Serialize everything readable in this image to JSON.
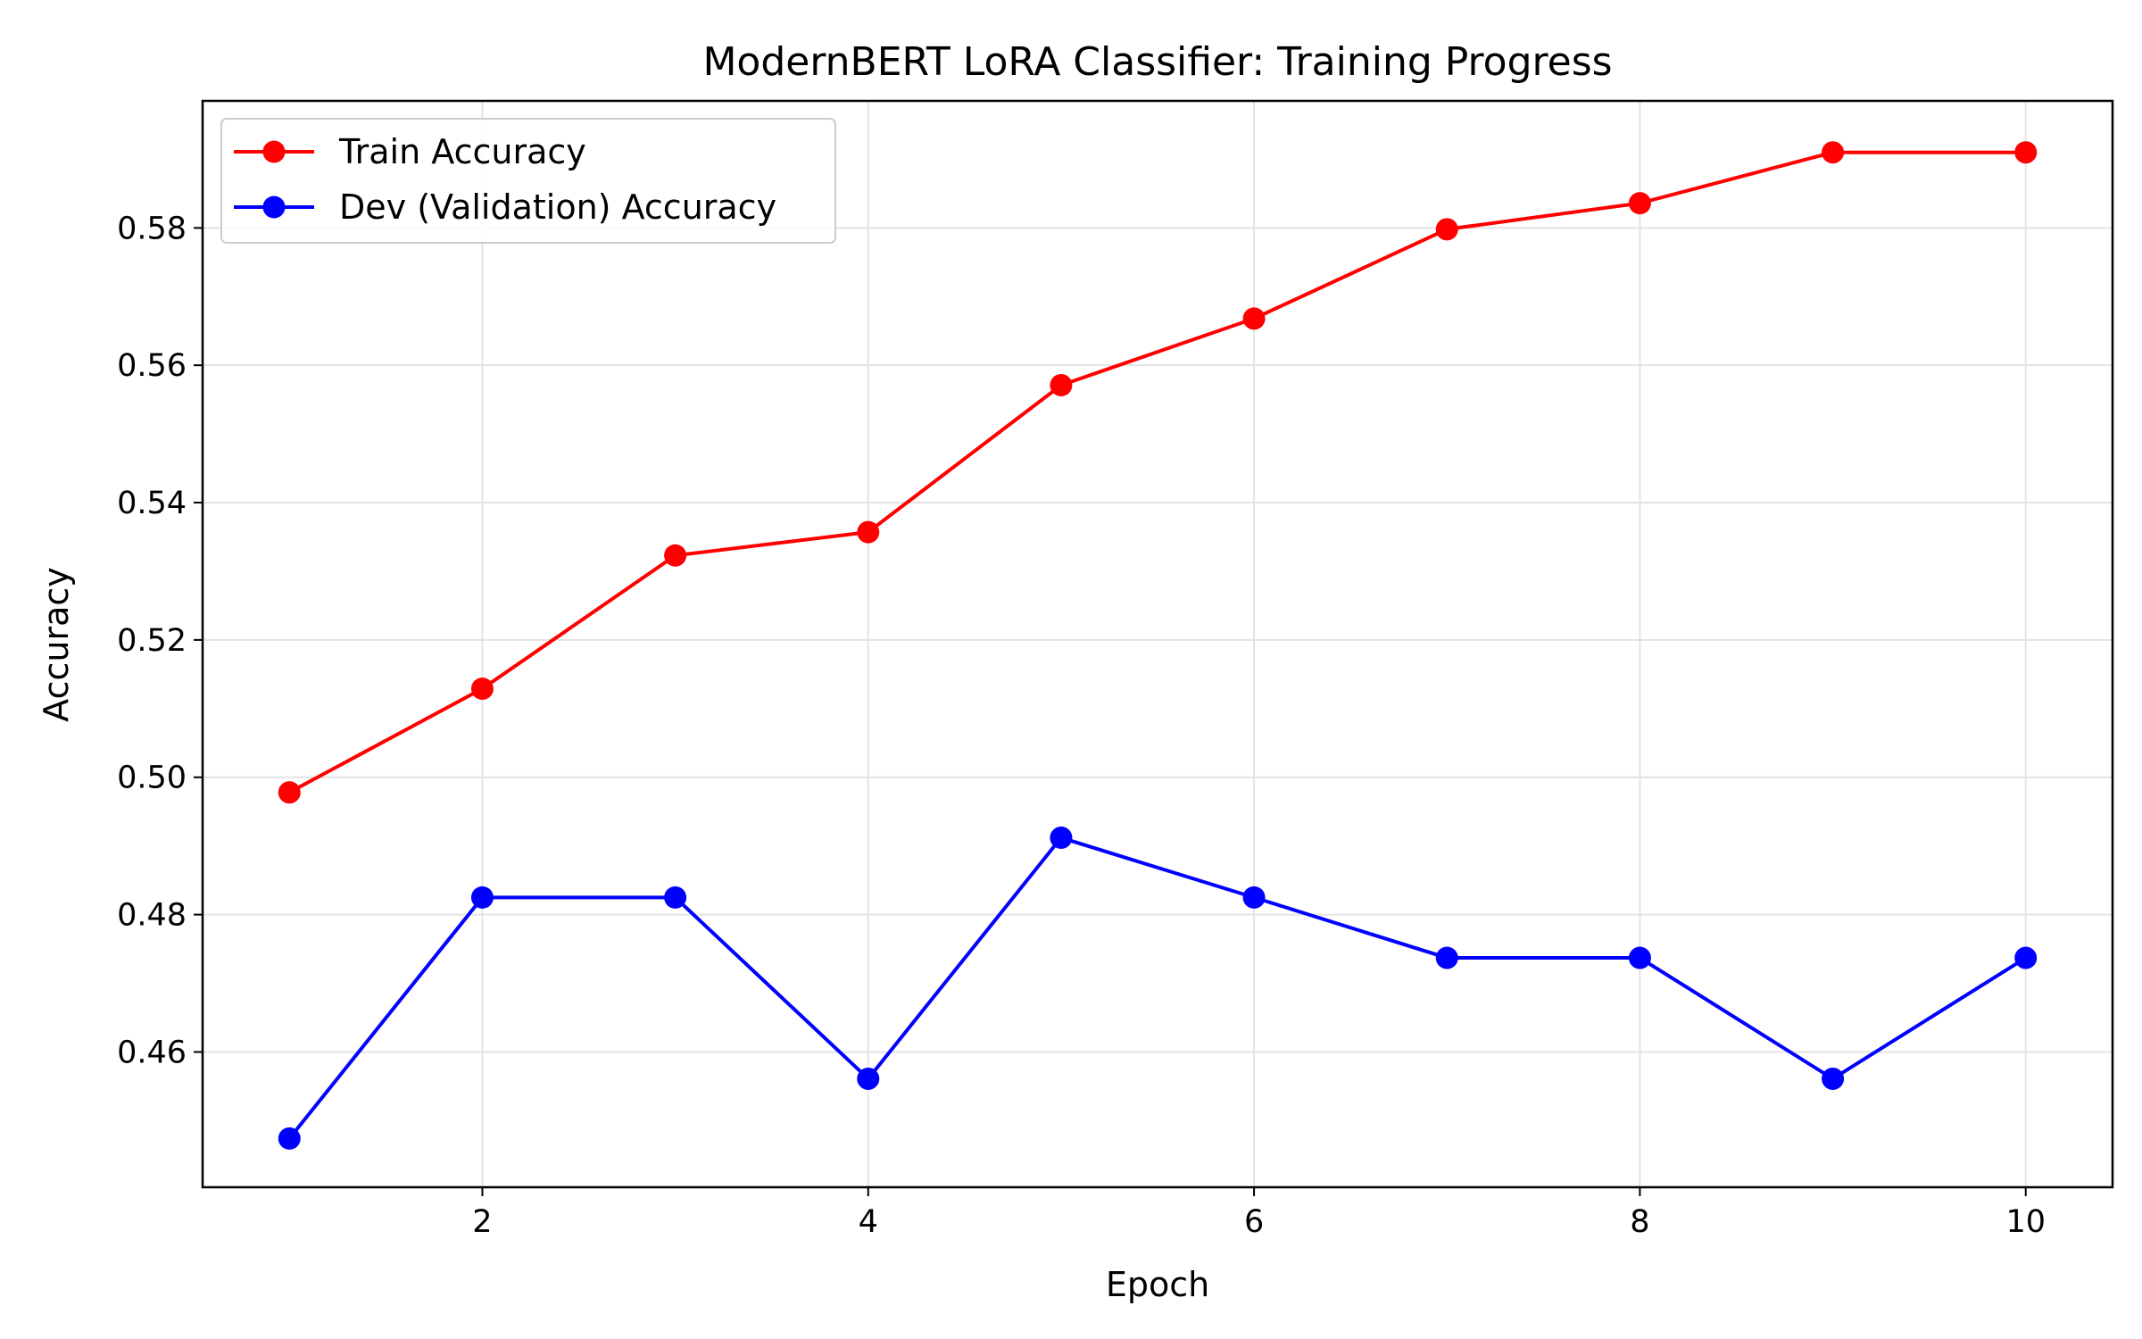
{
  "chart_data": {
    "type": "line",
    "title": "ModernBERT LoRA Classifier: Training Progress",
    "xlabel": "Epoch",
    "ylabel": "Accuracy",
    "x": [
      1,
      2,
      3,
      4,
      5,
      6,
      7,
      8,
      9,
      10
    ],
    "xlim": [
      0.55,
      10.45
    ],
    "ylim": [
      0.4403,
      0.5985
    ],
    "xticks": [
      2,
      4,
      6,
      8,
      10
    ],
    "yticks": [
      0.46,
      0.48,
      0.5,
      0.52,
      0.54,
      0.56,
      0.58
    ],
    "xtick_labels": [
      "2",
      "4",
      "6",
      "8",
      "10"
    ],
    "ytick_labels": [
      "0.46",
      "0.48",
      "0.50",
      "0.52",
      "0.54",
      "0.56",
      "0.58"
    ],
    "grid": true,
    "legend_position": "top-left",
    "series": [
      {
        "name": "Train Accuracy",
        "color": "#ff0000",
        "marker": "circle",
        "values": [
          0.4978,
          0.5129,
          0.5323,
          0.5357,
          0.5571,
          0.5668,
          0.5798,
          0.5836,
          0.591,
          0.591
        ]
      },
      {
        "name": "Dev (Validation) Accuracy",
        "color": "#0000ff",
        "marker": "circle",
        "values": [
          0.4474,
          0.4825,
          0.4825,
          0.4561,
          0.4912,
          0.4825,
          0.4737,
          0.4737,
          0.4561,
          0.4737
        ]
      }
    ]
  }
}
